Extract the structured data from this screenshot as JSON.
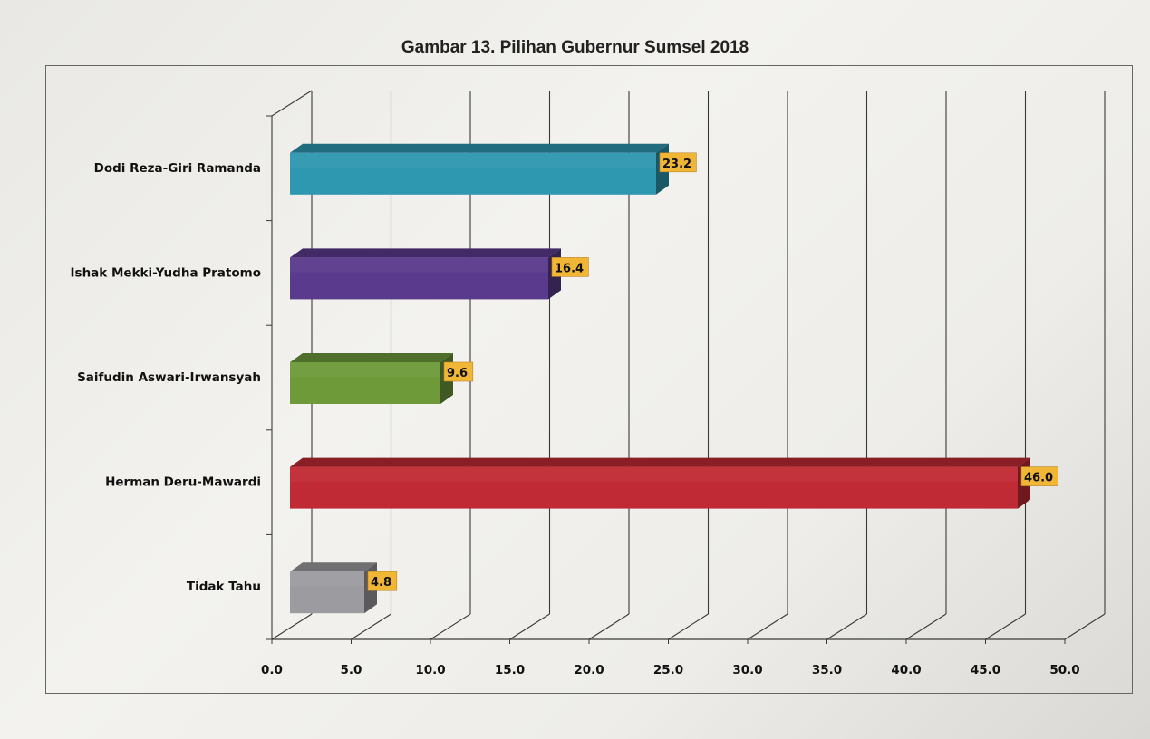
{
  "title": "Gambar 13. Pilihan Gubernur Sumsel 2018",
  "chart_data": {
    "type": "bar",
    "orientation": "horizontal",
    "title": "Gambar 13. Pilihan Gubernur Sumsel 2018",
    "categories": [
      "Dodi Reza-Giri Ramanda",
      "Ishak Mekki-Yudha Pratomo",
      "Saifudin Aswari-Irwansyah",
      "Herman Deru-Mawardi",
      "Tidak Tahu"
    ],
    "values": [
      23.2,
      16.4,
      9.6,
      46.0,
      4.8
    ],
    "value_labels": [
      "23.2",
      "16.4",
      "9.6",
      "46.0",
      "4.8"
    ],
    "colors": [
      "#2e98b0",
      "#5a3a8c",
      "#6e9a3a",
      "#c02a34",
      "#9c9ca0"
    ],
    "label_box_color": "#f2b636",
    "xticks": [
      "0.0",
      "5.0",
      "10.0",
      "15.0",
      "20.0",
      "25.0",
      "30.0",
      "35.0",
      "40.0",
      "45.0",
      "50.0"
    ],
    "xlim": [
      0,
      50
    ],
    "grid": true,
    "three_d": true,
    "xlabel": "",
    "ylabel": ""
  }
}
